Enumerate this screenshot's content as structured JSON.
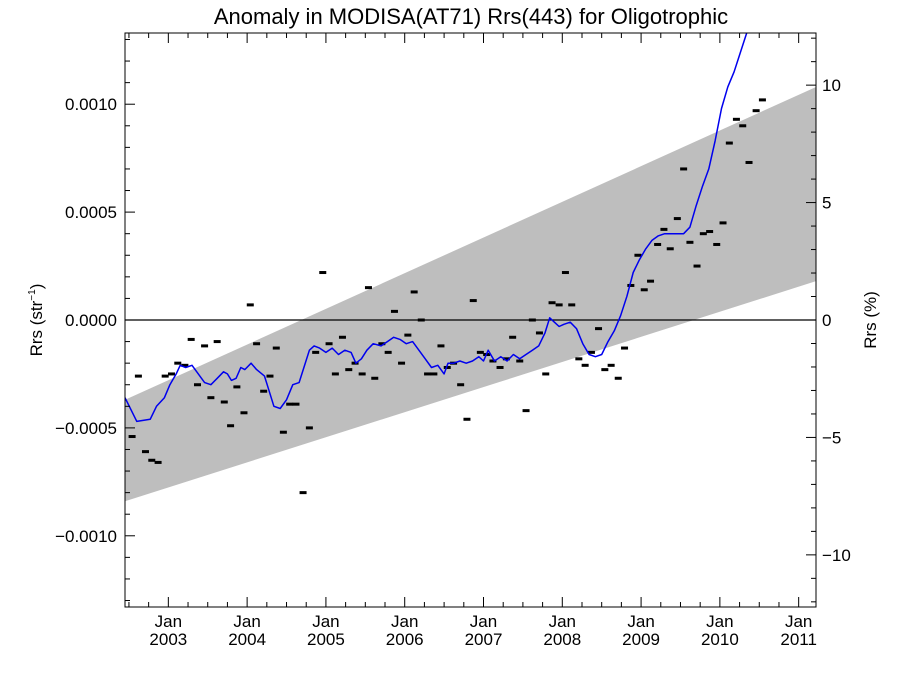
{
  "chart_data": {
    "type": "line",
    "title": "Anomaly in MODISA(AT71) Rrs(443) for Oligotrophic",
    "ylabel": "Rrs (str",
    "ylabel_sup": "−1",
    "ylabel_close": ")",
    "y2label": "Rrs (%)",
    "xlim": [
      2002.45,
      2011.22
    ],
    "ylim": [
      -0.00133,
      0.00133
    ],
    "y2lim": [
      -12.22,
      12.22
    ],
    "grid": false,
    "legend": "none",
    "x_ticks": [
      {
        "x": 2003.0,
        "month": "Jan",
        "year": "2003"
      },
      {
        "x": 2004.0,
        "month": "Jan",
        "year": "2004"
      },
      {
        "x": 2005.0,
        "month": "Jan",
        "year": "2005"
      },
      {
        "x": 2006.0,
        "month": "Jan",
        "year": "2006"
      },
      {
        "x": 2007.0,
        "month": "Jan",
        "year": "2007"
      },
      {
        "x": 2008.0,
        "month": "Jan",
        "year": "2008"
      },
      {
        "x": 2009.0,
        "month": "Jan",
        "year": "2009"
      },
      {
        "x": 2010.0,
        "month": "Jan",
        "year": "2010"
      },
      {
        "x": 2011.0,
        "month": "Jan",
        "year": "2011"
      }
    ],
    "y_ticks": [
      {
        "v": 0.001,
        "label": "0.0010"
      },
      {
        "v": 0.0005,
        "label": "0.0005"
      },
      {
        "v": 0.0,
        "label": "0.0000"
      },
      {
        "v": -0.0005,
        "label": "−0.0005"
      },
      {
        "v": -0.001,
        "label": "−0.0010"
      }
    ],
    "y2_ticks": [
      {
        "v": 10,
        "label": "10"
      },
      {
        "v": 5,
        "label": "5"
      },
      {
        "v": 0,
        "label": "0"
      },
      {
        "v": -5,
        "label": "−5"
      },
      {
        "v": -10,
        "label": "−10"
      }
    ],
    "zero_line": 0.0,
    "band": {
      "x": [
        2002.45,
        2011.22
      ],
      "upper": [
        -0.00037,
        0.00108
      ],
      "lower": [
        -0.00084,
        0.00018
      ],
      "color": "#bebebe"
    },
    "series": [
      {
        "kind": "monthly_anomaly_markers",
        "color": "#000000",
        "points": [
          [
            2002.54,
            -0.00054
          ],
          [
            2002.62,
            -0.00026
          ],
          [
            2002.71,
            -0.00061
          ],
          [
            2002.79,
            -0.00065
          ],
          [
            2002.87,
            -0.00066
          ],
          [
            2002.96,
            -0.00026
          ],
          [
            2003.04,
            -0.00025
          ],
          [
            2003.12,
            -0.0002
          ],
          [
            2003.21,
            -0.00021
          ],
          [
            2003.29,
            -9e-05
          ],
          [
            2003.37,
            -0.0003
          ],
          [
            2003.46,
            -0.00012
          ],
          [
            2003.54,
            -0.00036
          ],
          [
            2003.62,
            -0.0001
          ],
          [
            2003.71,
            -0.00038
          ],
          [
            2003.79,
            -0.00049
          ],
          [
            2003.87,
            -0.00031
          ],
          [
            2003.96,
            -0.00043
          ],
          [
            2004.04,
            7e-05
          ],
          [
            2004.12,
            -0.00011
          ],
          [
            2004.21,
            -0.00033
          ],
          [
            2004.29,
            -0.00026
          ],
          [
            2004.37,
            -0.00013
          ],
          [
            2004.46,
            -0.00052
          ],
          [
            2004.54,
            -0.00039
          ],
          [
            2004.62,
            -0.00039
          ],
          [
            2004.71,
            -0.0008
          ],
          [
            2004.79,
            -0.0005
          ],
          [
            2004.87,
            -0.00015
          ],
          [
            2004.96,
            0.00022
          ],
          [
            2005.04,
            -0.00011
          ],
          [
            2005.12,
            -0.00025
          ],
          [
            2005.21,
            -8e-05
          ],
          [
            2005.29,
            -0.00023
          ],
          [
            2005.37,
            -0.0002
          ],
          [
            2005.46,
            -0.00025
          ],
          [
            2005.54,
            0.00015
          ],
          [
            2005.62,
            -0.00027
          ],
          [
            2005.71,
            -0.00011
          ],
          [
            2005.79,
            -0.00015
          ],
          [
            2005.87,
            4e-05
          ],
          [
            2005.96,
            -0.0002
          ],
          [
            2006.04,
            -7e-05
          ],
          [
            2006.12,
            0.00013
          ],
          [
            2006.21,
            0.0
          ],
          [
            2006.29,
            -0.00025
          ],
          [
            2006.37,
            -0.00025
          ],
          [
            2006.46,
            -0.00012
          ],
          [
            2006.54,
            -0.00022
          ],
          [
            2006.62,
            -0.0002
          ],
          [
            2006.71,
            -0.0003
          ],
          [
            2006.79,
            -0.00046
          ],
          [
            2006.87,
            9e-05
          ],
          [
            2006.96,
            -0.00015
          ],
          [
            2007.04,
            -0.00016
          ],
          [
            2007.12,
            -0.00019
          ],
          [
            2007.21,
            -0.00022
          ],
          [
            2007.29,
            -0.00018
          ],
          [
            2007.37,
            -8e-05
          ],
          [
            2007.46,
            -0.00019
          ],
          [
            2007.54,
            -0.00042
          ],
          [
            2007.62,
            0.0
          ],
          [
            2007.71,
            -6e-05
          ],
          [
            2007.79,
            -0.00025
          ],
          [
            2007.87,
            8e-05
          ],
          [
            2007.96,
            7e-05
          ],
          [
            2008.04,
            0.00022
          ],
          [
            2008.12,
            7e-05
          ],
          [
            2008.21,
            -0.00018
          ],
          [
            2008.29,
            -0.00021
          ],
          [
            2008.37,
            -0.00015
          ],
          [
            2008.46,
            -4e-05
          ],
          [
            2008.54,
            -0.00023
          ],
          [
            2008.62,
            -0.00021
          ],
          [
            2008.71,
            -0.00027
          ],
          [
            2008.79,
            -0.00013
          ],
          [
            2008.87,
            0.00016
          ],
          [
            2008.96,
            0.0003
          ],
          [
            2009.04,
            0.00014
          ],
          [
            2009.12,
            0.00018
          ],
          [
            2009.21,
            0.00035
          ],
          [
            2009.29,
            0.00042
          ],
          [
            2009.37,
            0.00033
          ],
          [
            2009.46,
            0.00047
          ],
          [
            2009.54,
            0.0007
          ],
          [
            2009.62,
            0.00036
          ],
          [
            2009.71,
            0.00025
          ],
          [
            2009.79,
            0.0004
          ],
          [
            2009.87,
            0.00041
          ],
          [
            2009.96,
            0.00035
          ],
          [
            2010.04,
            0.00045
          ],
          [
            2010.12,
            0.00082
          ],
          [
            2010.21,
            0.00093
          ],
          [
            2010.29,
            0.0009
          ],
          [
            2010.37,
            0.00073
          ],
          [
            2010.46,
            0.00097
          ],
          [
            2010.54,
            0.00102
          ]
        ]
      },
      {
        "kind": "smoothed_line",
        "color": "#0000ee",
        "points": [
          [
            2002.45,
            -0.00036
          ],
          [
            2002.6,
            -0.00047
          ],
          [
            2002.77,
            -0.00046
          ],
          [
            2002.85,
            -0.0004
          ],
          [
            2002.95,
            -0.00036
          ],
          [
            2003.02,
            -0.0003
          ],
          [
            2003.1,
            -0.00025
          ],
          [
            2003.15,
            -0.00021
          ],
          [
            2003.22,
            -0.00022
          ],
          [
            2003.3,
            -0.00021
          ],
          [
            2003.38,
            -0.00025
          ],
          [
            2003.46,
            -0.00029
          ],
          [
            2003.54,
            -0.0003
          ],
          [
            2003.62,
            -0.00027
          ],
          [
            2003.7,
            -0.00024
          ],
          [
            2003.75,
            -0.00025
          ],
          [
            2003.8,
            -0.00028
          ],
          [
            2003.86,
            -0.00027
          ],
          [
            2003.92,
            -0.00022
          ],
          [
            2003.97,
            -0.00023
          ],
          [
            2004.05,
            -0.0002
          ],
          [
            2004.12,
            -0.00023
          ],
          [
            2004.22,
            -0.00026
          ],
          [
            2004.28,
            -0.00033
          ],
          [
            2004.34,
            -0.0004
          ],
          [
            2004.42,
            -0.00041
          ],
          [
            2004.5,
            -0.00037
          ],
          [
            2004.58,
            -0.0003
          ],
          [
            2004.66,
            -0.00029
          ],
          [
            2004.72,
            -0.00022
          ],
          [
            2004.79,
            -0.00014
          ],
          [
            2004.85,
            -0.00012
          ],
          [
            2004.92,
            -0.00013
          ],
          [
            2005.0,
            -0.00015
          ],
          [
            2005.08,
            -0.00013
          ],
          [
            2005.16,
            -0.00016
          ],
          [
            2005.24,
            -0.00014
          ],
          [
            2005.32,
            -0.00015
          ],
          [
            2005.38,
            -0.0002
          ],
          [
            2005.45,
            -0.00018
          ],
          [
            2005.52,
            -0.00014
          ],
          [
            2005.6,
            -0.00011
          ],
          [
            2005.7,
            -0.00012
          ],
          [
            2005.78,
            -0.0001
          ],
          [
            2005.86,
            -8e-05
          ],
          [
            2005.94,
            -9e-05
          ],
          [
            2006.02,
            -0.00011
          ],
          [
            2006.1,
            -0.0001
          ],
          [
            2006.18,
            -0.00014
          ],
          [
            2006.26,
            -0.00018
          ],
          [
            2006.34,
            -0.00022
          ],
          [
            2006.42,
            -0.00021
          ],
          [
            2006.5,
            -0.00025
          ],
          [
            2006.55,
            -0.0002
          ],
          [
            2006.62,
            -0.0002
          ],
          [
            2006.7,
            -0.00019
          ],
          [
            2006.78,
            -0.0002
          ],
          [
            2006.86,
            -0.00019
          ],
          [
            2006.94,
            -0.00017
          ],
          [
            2007.0,
            -0.00019
          ],
          [
            2007.06,
            -0.00014
          ],
          [
            2007.14,
            -0.00019
          ],
          [
            2007.22,
            -0.00017
          ],
          [
            2007.3,
            -0.00019
          ],
          [
            2007.38,
            -0.00016
          ],
          [
            2007.46,
            -0.00018
          ],
          [
            2007.54,
            -0.00016
          ],
          [
            2007.62,
            -0.00014
          ],
          [
            2007.7,
            -0.00012
          ],
          [
            2007.78,
            -6e-05
          ],
          [
            2007.84,
            1e-05
          ],
          [
            2007.9,
            -1e-05
          ],
          [
            2007.96,
            -3e-05
          ],
          [
            2008.02,
            -2e-05
          ],
          [
            2008.1,
            -1e-05
          ],
          [
            2008.18,
            -4e-05
          ],
          [
            2008.26,
            -0.00011
          ],
          [
            2008.34,
            -0.00016
          ],
          [
            2008.42,
            -0.00017
          ],
          [
            2008.5,
            -0.00016
          ],
          [
            2008.58,
            -0.0001
          ],
          [
            2008.66,
            -5e-05
          ],
          [
            2008.74,
            2e-05
          ],
          [
            2008.82,
            0.00011
          ],
          [
            2008.9,
            0.00022
          ],
          [
            2008.98,
            0.00028
          ],
          [
            2009.06,
            0.00033
          ],
          [
            2009.14,
            0.00037
          ],
          [
            2009.22,
            0.00039
          ],
          [
            2009.3,
            0.0004
          ],
          [
            2009.38,
            0.0004
          ],
          [
            2009.46,
            0.0004
          ],
          [
            2009.54,
            0.0004
          ],
          [
            2009.62,
            0.00043
          ],
          [
            2009.7,
            0.00053
          ],
          [
            2009.78,
            0.00062
          ],
          [
            2009.86,
            0.0007
          ],
          [
            2009.94,
            0.00083
          ],
          [
            2010.02,
            0.00098
          ],
          [
            2010.1,
            0.00108
          ],
          [
            2010.18,
            0.00115
          ],
          [
            2010.26,
            0.00124
          ],
          [
            2010.34,
            0.00133
          ]
        ]
      }
    ]
  }
}
